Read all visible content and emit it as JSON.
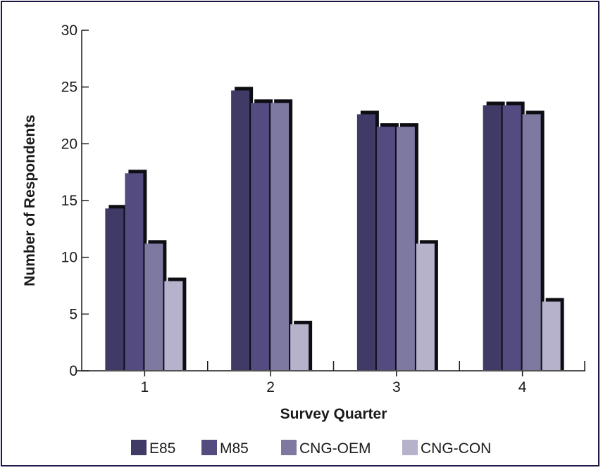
{
  "chart_data": {
    "type": "bar",
    "title": "",
    "xlabel": "Survey Quarter",
    "ylabel": "Number of Respondents",
    "categories": [
      "1",
      "2",
      "3",
      "4"
    ],
    "ylim": [
      0,
      30
    ],
    "yticks": [
      0,
      5,
      10,
      15,
      20,
      25,
      30
    ],
    "grid": false,
    "legend_position": "bottom",
    "series": [
      {
        "name": "E85",
        "color": "#3f3a66",
        "values": [
          14.3,
          24.7,
          22.6,
          23.4
        ]
      },
      {
        "name": "M85",
        "color": "#544c80",
        "values": [
          17.4,
          23.6,
          21.5,
          23.4
        ]
      },
      {
        "name": "CNG-OEM",
        "color": "#7e79a0",
        "values": [
          11.2,
          23.6,
          21.5,
          22.6
        ]
      },
      {
        "name": "CNG-CON",
        "color": "#b6b2cc",
        "values": [
          7.9,
          4.1,
          11.2,
          6.1
        ]
      }
    ]
  }
}
